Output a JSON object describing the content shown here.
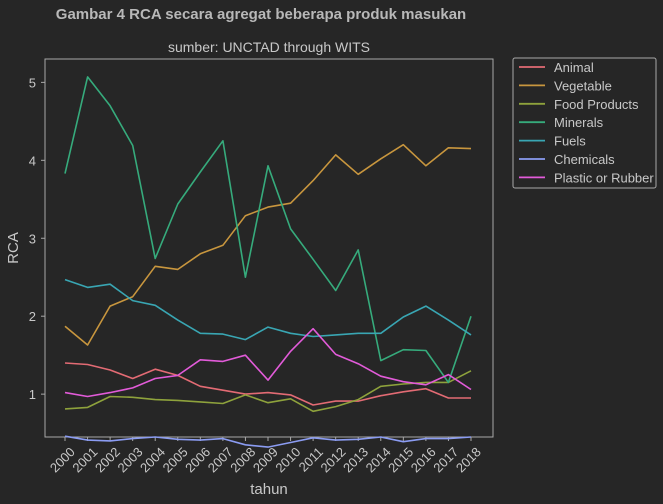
{
  "chart_data": {
    "type": "line",
    "title": "Gambar 4 RCA secara agregat beberapa produk masukan",
    "subtitle": "sumber: UNCTAD through WITS",
    "xlabel": "tahun",
    "ylabel": "RCA",
    "ylim": [
      0.45,
      5.3
    ],
    "yticks": [
      1,
      2,
      3,
      4,
      5
    ],
    "grid": false,
    "legend_position": "outside-top-right",
    "x": [
      "2000",
      "2001",
      "2002",
      "2003",
      "2004",
      "2005",
      "2006",
      "2007",
      "2008",
      "2009",
      "2010",
      "2011",
      "2012",
      "2013",
      "2014",
      "2015",
      "2016",
      "2017",
      "2018"
    ],
    "series": [
      {
        "name": "Animal",
        "color": "#e36b74",
        "values": [
          1.4,
          1.38,
          1.31,
          1.2,
          1.32,
          1.24,
          1.1,
          1.05,
          1.0,
          1.02,
          0.99,
          0.86,
          0.91,
          0.91,
          0.98,
          1.03,
          1.07,
          0.95,
          0.95
        ]
      },
      {
        "name": "Vegetable",
        "color": "#c8963e",
        "values": [
          1.87,
          1.63,
          2.13,
          2.25,
          2.64,
          2.6,
          2.8,
          2.91,
          3.29,
          3.4,
          3.45,
          3.74,
          4.07,
          3.82,
          4.02,
          4.2,
          3.93,
          4.16,
          4.15
        ]
      },
      {
        "name": "Food Products",
        "color": "#8ea23c",
        "values": [
          0.81,
          0.83,
          0.97,
          0.96,
          0.93,
          0.92,
          0.9,
          0.88,
          0.99,
          0.89,
          0.94,
          0.78,
          0.84,
          0.93,
          1.1,
          1.13,
          1.15,
          1.15,
          1.3
        ]
      },
      {
        "name": "Minerals",
        "color": "#36ab7c",
        "values": [
          3.83,
          5.07,
          4.7,
          4.19,
          2.74,
          3.44,
          3.85,
          4.25,
          2.5,
          3.93,
          3.12,
          2.73,
          2.33,
          2.85,
          1.43,
          1.57,
          1.56,
          1.15,
          2.0
        ]
      },
      {
        "name": "Fuels",
        "color": "#39a6b3",
        "values": [
          2.47,
          2.37,
          2.41,
          2.2,
          2.14,
          1.95,
          1.78,
          1.77,
          1.7,
          1.86,
          1.78,
          1.74,
          1.76,
          1.78,
          1.78,
          1.99,
          2.13,
          1.95,
          1.76
        ]
      },
      {
        "name": "Chemicals",
        "color": "#8b9cf2",
        "values": [
          0.46,
          0.41,
          0.4,
          0.43,
          0.45,
          0.42,
          0.41,
          0.43,
          0.35,
          0.32,
          0.38,
          0.44,
          0.41,
          0.42,
          0.45,
          0.39,
          0.43,
          0.43,
          0.45
        ]
      },
      {
        "name": "Plastic or Rubber",
        "color": "#e25bd9",
        "values": [
          1.02,
          0.97,
          1.02,
          1.08,
          1.2,
          1.24,
          1.44,
          1.42,
          1.5,
          1.18,
          1.55,
          1.84,
          1.51,
          1.39,
          1.23,
          1.16,
          1.12,
          1.25,
          1.06
        ]
      }
    ]
  }
}
